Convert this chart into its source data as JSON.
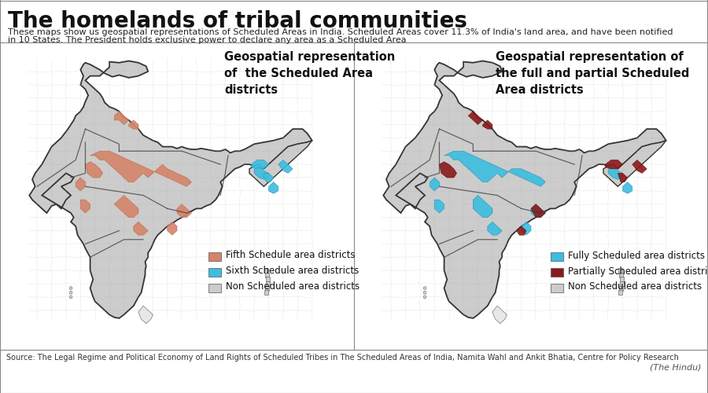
{
  "title": "The homelands of tribal communities",
  "subtitle_line1": "These maps show us geospatial representations of Scheduled Areas in India. Scheduled Areas cover 11.3% of India's land area, and have been notified",
  "subtitle_line2": "in 10 States. The President holds exclusive power to declare any area as a Scheduled Area",
  "source": "Source: The Legal Regime and Political Economy of Land Rights of Scheduled Tribes in The Scheduled Areas of India, Namita Wahl and Ankit Bhatia, Centre for Policy Research",
  "attribution": "(The Hindu)",
  "left_map_title": "Geospatial representation\nof  the Scheduled Area\ndistricts",
  "right_map_title": "Geospatial representation of\nthe full and partial Scheduled\nArea districts",
  "left_legend": [
    {
      "label": "Fifth Schedule area districts",
      "color": "#D4846A"
    },
    {
      "label": "Sixth Schedule area districts",
      "color": "#3BBDE0"
    },
    {
      "label": "Non Scheduled area districts",
      "color": "#CCCCCC"
    }
  ],
  "right_legend": [
    {
      "label": "Fully Scheduled area districts",
      "color": "#3BBDE0"
    },
    {
      "label": "Partially Scheduled area districts",
      "color": "#8B1A1A"
    },
    {
      "label": "Non Scheduled area districts",
      "color": "#CCCCCC"
    }
  ],
  "bg_color": "#FFFFFF",
  "panel_bg": "#F5F5F5",
  "title_fontsize": 20,
  "subtitle_fontsize": 8,
  "map_title_fontsize": 10.5,
  "legend_fontsize": 8.5,
  "source_fontsize": 7
}
